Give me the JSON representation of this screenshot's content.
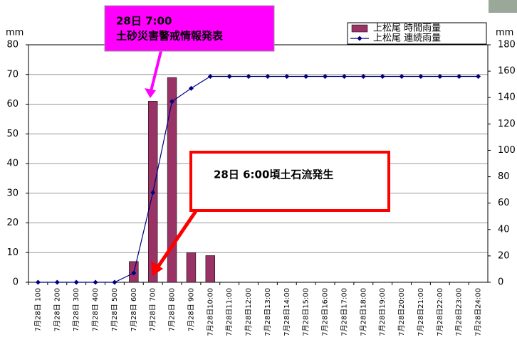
{
  "chart_data": {
    "type": "bar_line",
    "y_unit": "mm",
    "y2_unit": "mm",
    "categories": [
      "7月28日 100",
      "7月28日 200",
      "7月28日 300",
      "7月28日 400",
      "7月28日 500",
      "7月28日 600",
      "7月28日 700",
      "7月28日 800",
      "7月28日 900",
      "7月28日10:00",
      "7月28日11:00",
      "7月28日12:00",
      "7月28日13:00",
      "7月28日14:00",
      "7月28日15:00",
      "7月28日16:00",
      "7月28日17:00",
      "7月28日18:00",
      "7月28日19:00",
      "7月28日20:00",
      "7月28日21:00",
      "7月28日22:00",
      "7月28日23:00",
      "7月28日24:00"
    ],
    "series": [
      {
        "name": "上松尾 時間雨量",
        "type": "bar",
        "color": "#993366",
        "values": [
          0,
          0,
          0,
          0,
          0,
          7,
          61,
          69,
          10,
          9,
          0,
          0,
          0,
          0,
          0,
          0,
          0,
          0,
          0,
          0,
          0,
          0,
          0,
          0
        ]
      },
      {
        "name": "上松尾 連続雨量",
        "type": "line",
        "axis": "y2",
        "color": "#000080",
        "values": [
          0,
          0,
          0,
          0,
          0,
          7,
          68,
          137,
          147,
          156,
          156,
          156,
          156,
          156,
          156,
          156,
          156,
          156,
          156,
          156,
          156,
          156,
          156,
          156
        ]
      }
    ],
    "ylim": [
      0,
      80
    ],
    "yticks": [
      0,
      10,
      20,
      30,
      40,
      50,
      60,
      70,
      80
    ],
    "y2lim": [
      0,
      180
    ],
    "y2ticks": [
      0,
      20,
      40,
      60,
      80,
      100,
      120,
      140,
      160,
      180
    ],
    "grid": true,
    "legend": "upper right",
    "annotations": [
      {
        "lines": [
          "28日 7:00",
          "土砂災害警戒情報発表"
        ],
        "color": "#ff00ff"
      },
      {
        "lines": [
          "28日 6:00頃土石流発生"
        ],
        "color": "#ff0000"
      }
    ]
  }
}
